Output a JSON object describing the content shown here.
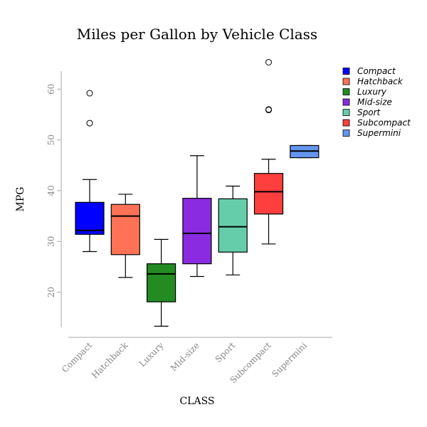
{
  "chart_data": {
    "type": "boxplot",
    "title": "Miles per Gallon by Vehicle Class",
    "xlabel": "CLASS",
    "ylabel": "MPG",
    "ylim": [
      13,
      66
    ],
    "yticks": [
      20,
      30,
      40,
      50,
      60
    ],
    "grid": false,
    "legend_position": "top-right",
    "categories": [
      "Compact",
      "Hatchback",
      "Luxury",
      "Mid-size",
      "Sport",
      "Subcompact",
      "Supermini"
    ],
    "series": [
      {
        "name": "Compact",
        "color": "#0000ff",
        "whisker_low": 28,
        "q1": 31.4,
        "median": 32.2,
        "q3": 37.7,
        "whisker_high": 42.2,
        "outliers": [
          53.3,
          59.2
        ]
      },
      {
        "name": "Hatchback",
        "color": "#ff7256",
        "whisker_low": 22.9,
        "q1": 27.4,
        "median": 35,
        "q3": 37.3,
        "whisker_high": 39.3,
        "outliers": []
      },
      {
        "name": "Luxury",
        "color": "#228b22",
        "whisker_low": 13.3,
        "q1": 18.1,
        "median": 23.6,
        "q3": 25.6,
        "whisker_high": 30.4,
        "outliers": []
      },
      {
        "name": "Mid-size",
        "color": "#8a2be2",
        "whisker_low": 23.1,
        "q1": 25.6,
        "median": 31.6,
        "q3": 38.5,
        "whisker_high": 46.9,
        "outliers": []
      },
      {
        "name": "Sport",
        "color": "#66cdaa",
        "whisker_low": 23.4,
        "q1": 27.9,
        "median": 32.9,
        "q3": 38.4,
        "whisker_high": 40.9,
        "outliers": []
      },
      {
        "name": "Subcompact",
        "color": "#ff3e3e",
        "whisker_low": 29.5,
        "q1": 35.4,
        "median": 39.8,
        "q3": 43.4,
        "whisker_high": 46.2,
        "outliers": [
          55.9,
          56.0,
          65.3
        ]
      },
      {
        "name": "Supermini",
        "color": "#6495ed",
        "whisker_low": 46.5,
        "q1": 46.5,
        "median": 47.8,
        "q3": 48.9,
        "whisker_high": 48.9,
        "outliers": []
      }
    ]
  }
}
